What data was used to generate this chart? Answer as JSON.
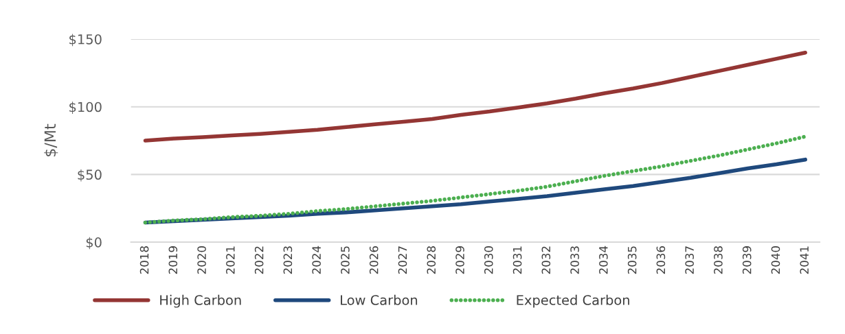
{
  "chart_data": {
    "type": "line",
    "ylabel": "$/Mt",
    "categories": [
      "2018",
      "2019",
      "2020",
      "2021",
      "2022",
      "2023",
      "2024",
      "2025",
      "2026",
      "2027",
      "2028",
      "2029",
      "2030",
      "2031",
      "2032",
      "2033",
      "2034",
      "2035",
      "2036",
      "2037",
      "2038",
      "2039",
      "2040",
      "2041"
    ],
    "series": [
      {
        "name": "High Carbon",
        "color": "#943634",
        "line_style": "solid",
        "values": [
          75,
          76.5,
          77.5,
          78.8,
          80,
          81.5,
          83,
          85,
          87,
          89,
          91,
          94,
          96.5,
          99.5,
          102.5,
          106,
          110,
          113.5,
          117.5,
          122,
          126.5,
          131,
          135.5,
          140
        ]
      },
      {
        "name": "Low Carbon",
        "color": "#1f497d",
        "line_style": "solid",
        "values": [
          14.5,
          15.5,
          16.5,
          17.5,
          18.5,
          19.5,
          21,
          22,
          23.5,
          25,
          26.5,
          28,
          30,
          32,
          34,
          36.5,
          39,
          41.5,
          44.5,
          47.5,
          51,
          54.5,
          57.5,
          61
        ]
      },
      {
        "name": "Expected Carbon",
        "color": "#4caf50",
        "line_style": "dotted",
        "values": [
          14.5,
          16,
          17,
          18.5,
          19.5,
          21,
          23,
          24.5,
          26.5,
          28.5,
          30.5,
          33,
          35.5,
          38,
          41,
          45,
          49,
          52.5,
          56,
          60,
          64,
          68.5,
          73,
          78
        ]
      }
    ],
    "ylim": [
      0,
      150
    ],
    "yticks": [
      {
        "value": 0,
        "label": "$0"
      },
      {
        "value": 50,
        "label": "$50"
      },
      {
        "value": 100,
        "label": "$100"
      },
      {
        "value": 150,
        "label": "$150"
      }
    ],
    "grid": "y",
    "legend": "bottom left",
    "marker": "none"
  }
}
